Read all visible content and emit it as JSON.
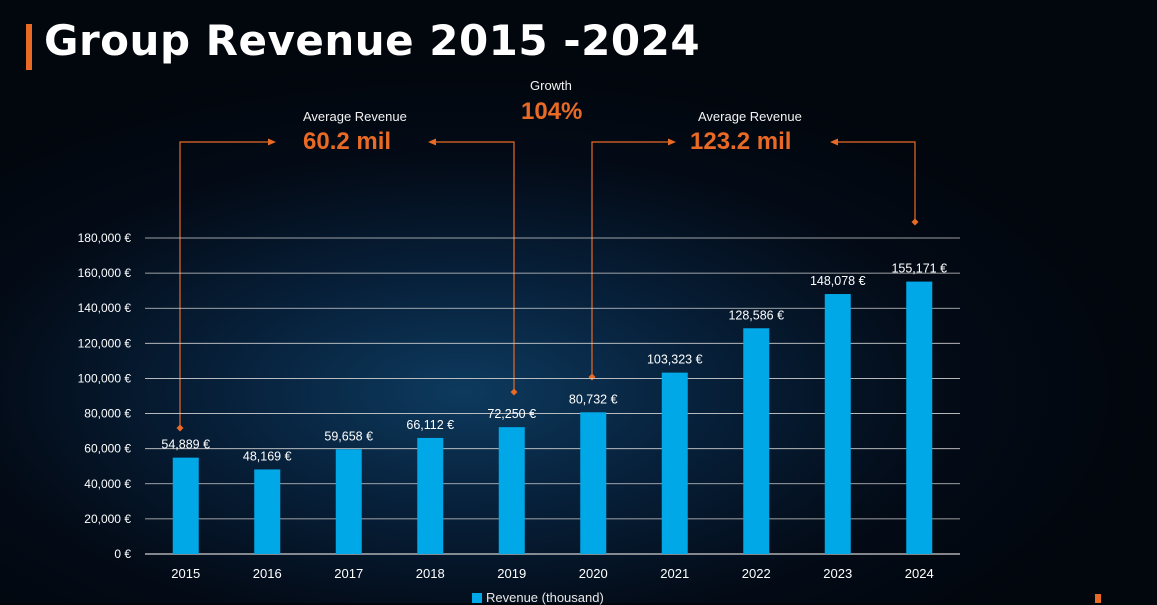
{
  "title": "Group Revenue 2015 -2024",
  "colors": {
    "accent": "#e86a25",
    "bar": "#00a8e8",
    "grid": "#d0d0d0",
    "text": "#ffffff"
  },
  "annotations": {
    "avg_left": {
      "label": "Average Revenue",
      "value": "60.2 mil"
    },
    "growth": {
      "label": "Growth",
      "value": "104%"
    },
    "avg_right": {
      "label": "Average Revenue",
      "value": "123.2 mil"
    }
  },
  "chart_data": {
    "type": "bar",
    "categories": [
      "2015",
      "2016",
      "2017",
      "2018",
      "2019",
      "2020",
      "2021",
      "2022",
      "2023",
      "2024"
    ],
    "series": [
      {
        "name": "Revenue (thousand)",
        "values": [
          54889,
          48169,
          59658,
          66112,
          72250,
          80732,
          103323,
          128586,
          148078,
          155171
        ]
      }
    ],
    "data_labels": [
      "54,889 €",
      "48,169 €",
      "59,658 €",
      "66,112 €",
      "72,250 €",
      "80,732 €",
      "103,323 €",
      "128,586 €",
      "148,078 €",
      "155,171 €"
    ],
    "y_ticks": [
      "0 €",
      "20,000 €",
      "40,000 €",
      "60,000 €",
      "80,000 €",
      "100,000 €",
      "120,000 €",
      "140,000 €",
      "160,000 €",
      "180,000 €"
    ],
    "ylim": [
      0,
      180000
    ],
    "grid": true,
    "legend": "bottom-center"
  }
}
